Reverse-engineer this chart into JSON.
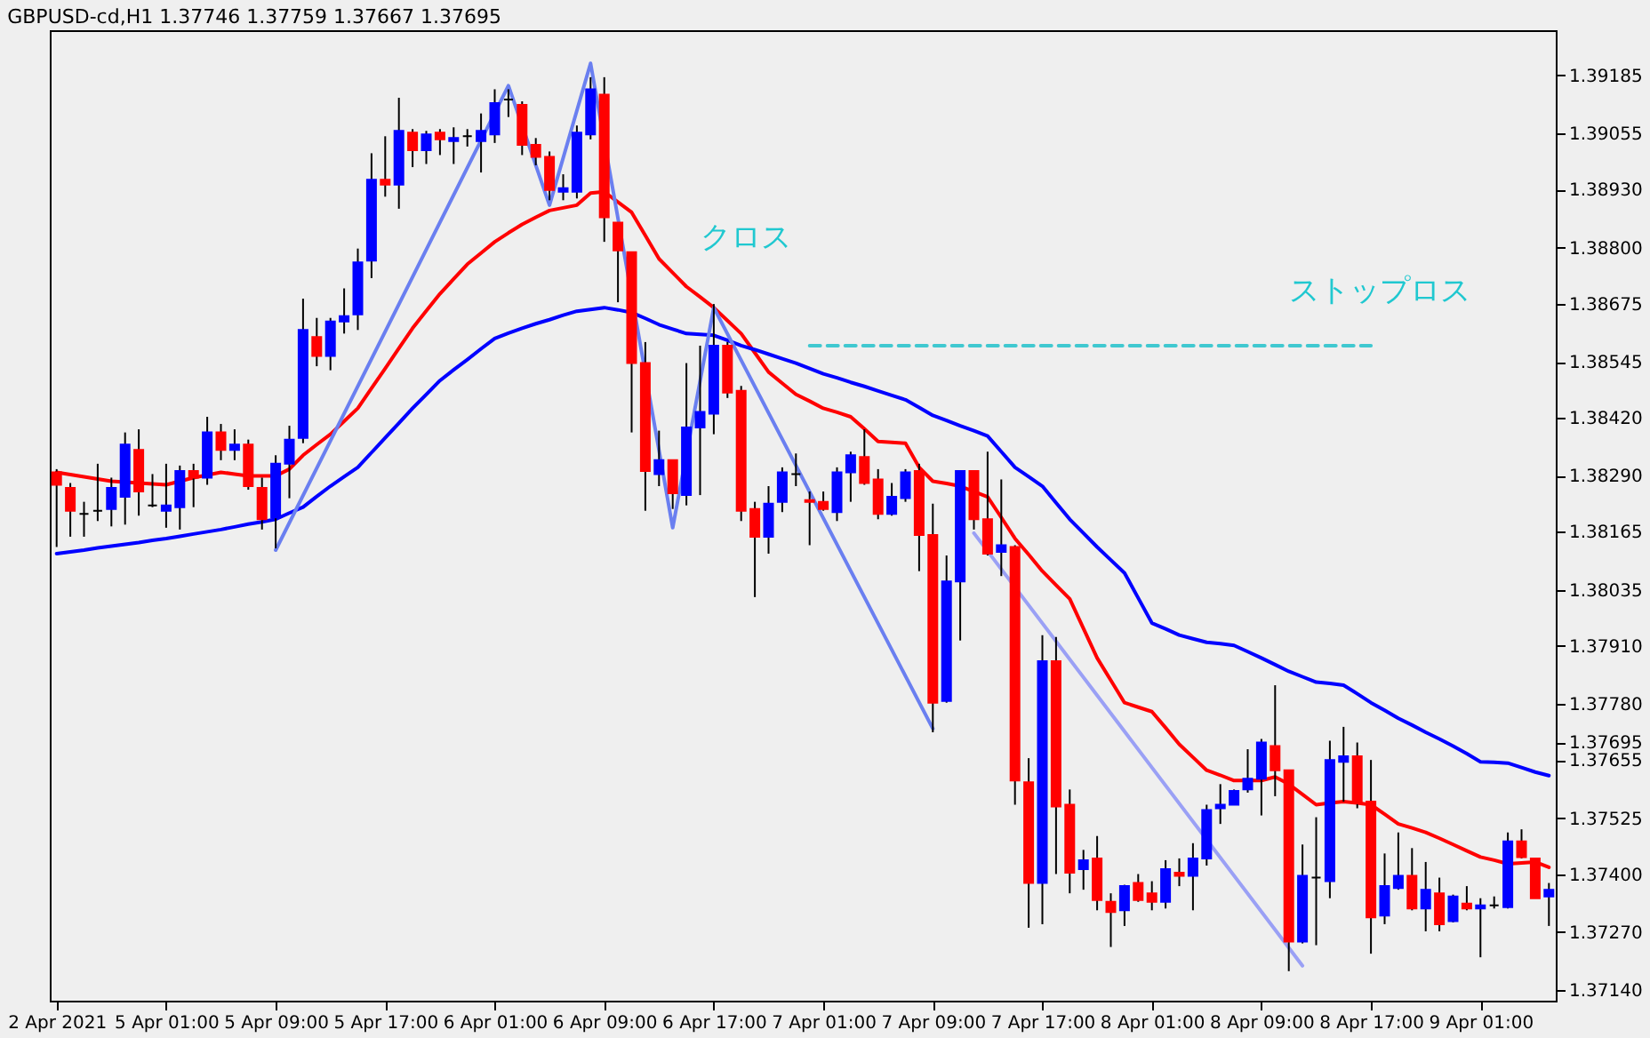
{
  "chart_data": {
    "type": "candlestick",
    "title": "GBPUSD-cd,H1  1.37746 1.37759 1.37667 1.37695",
    "categories": [
      "2 Apr 2021",
      null,
      null,
      null,
      null,
      null,
      null,
      null,
      "5 Apr 01:00",
      null,
      null,
      null,
      null,
      null,
      null,
      null,
      "5 Apr 09:00",
      null,
      null,
      null,
      null,
      null,
      null,
      null,
      "5 Apr 17:00",
      null,
      null,
      null,
      null,
      null,
      null,
      null,
      "6 Apr 01:00",
      null,
      null,
      null,
      null,
      null,
      null,
      null,
      "6 Apr 09:00",
      null,
      null,
      null,
      null,
      null,
      null,
      null,
      "6 Apr 17:00",
      null,
      null,
      null,
      null,
      null,
      null,
      null,
      "7 Apr 01:00",
      null,
      null,
      null,
      null,
      null,
      null,
      null,
      "7 Apr 09:00",
      null,
      null,
      null,
      null,
      null,
      null,
      null,
      "7 Apr 17:00",
      null,
      null,
      null,
      null,
      null,
      null,
      null,
      "8 Apr 01:00",
      null,
      null,
      null,
      null,
      null,
      null,
      null,
      "8 Apr 09:00",
      null,
      null,
      null,
      null,
      null,
      null,
      null,
      "8 Apr 17:00",
      null,
      null,
      null,
      null,
      null,
      null,
      null,
      "9 Apr 01:00",
      null,
      null,
      null,
      null,
      null
    ],
    "ohlc": [
      [
        1.38298,
        1.38305,
        1.38131,
        1.3827
      ],
      [
        1.38263,
        1.38274,
        1.38154,
        1.38212
      ],
      [
        1.38205,
        1.38232,
        1.38154,
        1.38205
      ],
      [
        1.38212,
        1.38317,
        1.38189,
        1.38212
      ],
      [
        1.38216,
        1.38286,
        1.38177,
        1.38263
      ],
      [
        1.38243,
        1.38387,
        1.38181,
        1.3836
      ],
      [
        1.38348,
        1.38394,
        1.38201,
        1.38255
      ],
      [
        1.38224,
        1.38294,
        1.3822,
        1.38224
      ],
      [
        1.38212,
        1.38317,
        1.38174,
        1.38224
      ],
      [
        1.3822,
        1.38313,
        1.3817,
        1.38301
      ],
      [
        1.38301,
        1.38317,
        1.3822,
        1.38286
      ],
      [
        1.38286,
        1.38422,
        1.3827,
        1.38387
      ],
      [
        1.38387,
        1.38406,
        1.38325,
        1.38348
      ],
      [
        1.38348,
        1.38394,
        1.38325,
        1.3836
      ],
      [
        1.3836,
        1.38371,
        1.38259,
        1.38267
      ],
      [
        1.38263,
        1.38286,
        1.3817,
        1.38193
      ],
      [
        1.38197,
        1.38336,
        1.38128,
        1.38317
      ],
      [
        1.38317,
        1.38402,
        1.3824,
        1.38371
      ],
      [
        1.38375,
        1.38686,
        1.38363,
        1.38616
      ],
      [
        1.386,
        1.38643,
        1.38535,
        1.38558
      ],
      [
        1.38558,
        1.38643,
        1.38526,
        1.38635
      ],
      [
        1.38635,
        1.38709,
        1.38608,
        1.38647
      ],
      [
        1.38651,
        1.38798,
        1.38616,
        1.38767
      ],
      [
        1.38771,
        1.39011,
        1.38732,
        1.38952
      ],
      [
        1.38952,
        1.39049,
        1.38914,
        1.38941
      ],
      [
        1.38941,
        1.39135,
        1.38887,
        1.39061
      ],
      [
        1.39057,
        1.39065,
        1.3898,
        1.39018
      ],
      [
        1.39018,
        1.39061,
        1.38987,
        1.39053
      ],
      [
        1.39057,
        1.39065,
        1.39007,
        1.39042
      ],
      [
        1.39038,
        1.39069,
        1.38987,
        1.39045
      ],
      [
        1.39049,
        1.39065,
        1.39026,
        1.39049
      ],
      [
        1.39038,
        1.391,
        1.38968,
        1.39061
      ],
      [
        1.39053,
        1.39154,
        1.39034,
        1.39123
      ],
      [
        1.39131,
        1.39154,
        1.39092,
        1.39131
      ],
      [
        1.39119,
        1.39127,
        1.39007,
        1.3903
      ],
      [
        1.3903,
        1.39045,
        1.38984,
        1.39003
      ],
      [
        1.39003,
        1.39015,
        1.38906,
        1.38929
      ],
      [
        1.38925,
        1.38964,
        1.38906,
        1.38933
      ],
      [
        1.38925,
        1.39073,
        1.3891,
        1.39057
      ],
      [
        1.39053,
        1.39181,
        1.39042,
        1.39154
      ],
      [
        1.39142,
        1.39181,
        1.38813,
        1.38868
      ],
      [
        1.38856,
        1.38856,
        1.38678,
        1.38794
      ],
      [
        1.3879,
        1.3879,
        1.38387,
        1.38542
      ],
      [
        1.38542,
        1.38589,
        1.38212,
        1.38301
      ],
      [
        1.38294,
        1.38391,
        1.38267,
        1.38325
      ],
      [
        1.38325,
        1.38325,
        1.38216,
        1.38251
      ],
      [
        1.38247,
        1.38542,
        1.38224,
        1.38398
      ],
      [
        1.38398,
        1.38581,
        1.38247,
        1.38433
      ],
      [
        1.38429,
        1.38674,
        1.38383,
        1.38581
      ],
      [
        1.38581,
        1.38589,
        1.38464,
        1.38476
      ],
      [
        1.3848,
        1.38491,
        1.38189,
        1.38212
      ],
      [
        1.38216,
        1.38232,
        1.38019,
        1.38154
      ],
      [
        1.38154,
        1.38267,
        1.38116,
        1.38228
      ],
      [
        1.38232,
        1.38309,
        1.38209,
        1.38298
      ],
      [
        1.38294,
        1.3834,
        1.38267,
        1.38294
      ],
      [
        1.38236,
        1.38255,
        1.38135,
        1.38232
      ],
      [
        1.38232,
        1.38255,
        1.38212,
        1.38216
      ],
      [
        1.38209,
        1.38309,
        1.38189,
        1.38298
      ],
      [
        1.38298,
        1.38344,
        1.38232,
        1.38336
      ],
      [
        1.38332,
        1.38394,
        1.3827,
        1.38274
      ],
      [
        1.38282,
        1.38305,
        1.38193,
        1.38205
      ],
      [
        1.38205,
        1.38274,
        1.38201,
        1.38243
      ],
      [
        1.3824,
        1.38305,
        1.38232,
        1.38298
      ],
      [
        1.38301,
        1.38317,
        1.38077,
        1.38158
      ],
      [
        1.38158,
        1.38228,
        1.37717,
        1.37783
      ],
      [
        1.37787,
        1.38112,
        1.37783,
        1.38054
      ],
      [
        1.38054,
        1.38301,
        1.37922,
        1.38301
      ],
      [
        1.38301,
        1.38301,
        1.3817,
        1.38193
      ],
      [
        1.38193,
        1.38344,
        1.38112,
        1.38116
      ],
      [
        1.3812,
        1.38282,
        1.38066,
        1.38135
      ],
      [
        1.38131,
        1.38135,
        1.37555,
        1.37609
      ],
      [
        1.37605,
        1.37659,
        1.3728,
        1.3738
      ],
      [
        1.3738,
        1.37934,
        1.37288,
        1.37876
      ],
      [
        1.37876,
        1.3793,
        1.374,
        1.37551
      ],
      [
        1.37555,
        1.37589,
        1.37357,
        1.37403
      ],
      [
        1.37411,
        1.37454,
        1.37365,
        1.37431
      ],
      [
        1.37435,
        1.37485,
        1.37319,
        1.37342
      ],
      [
        1.37338,
        1.37357,
        1.37237,
        1.37315
      ],
      [
        1.37319,
        1.37376,
        1.37284,
        1.37373
      ],
      [
        1.3738,
        1.374,
        1.37338,
        1.37342
      ],
      [
        1.37357,
        1.37384,
        1.37319,
        1.37338
      ],
      [
        1.37338,
        1.37431,
        1.37323,
        1.37411
      ],
      [
        1.37403,
        1.37435,
        1.37373,
        1.37396
      ],
      [
        1.37396,
        1.37469,
        1.37319,
        1.37435
      ],
      [
        1.37435,
        1.37555,
        1.37419,
        1.37543
      ],
      [
        1.37547,
        1.37601,
        1.37512,
        1.37555
      ],
      [
        1.37555,
        1.37589,
        1.37555,
        1.37586
      ],
      [
        1.37589,
        1.37679,
        1.37582,
        1.37613
      ],
      [
        1.37613,
        1.37702,
        1.37531,
        1.37694
      ],
      [
        1.37686,
        1.37822,
        1.37574,
        1.37632
      ],
      [
        1.37632,
        1.37632,
        1.37183,
        1.37249
      ],
      [
        1.37249,
        1.37466,
        1.37245,
        1.37396
      ],
      [
        1.37392,
        1.37527,
        1.37241,
        1.37392
      ],
      [
        1.37384,
        1.37698,
        1.37346,
        1.37655
      ],
      [
        1.37651,
        1.37729,
        1.37562,
        1.37663
      ],
      [
        1.37663,
        1.37694,
        1.37547,
        1.37558
      ],
      [
        1.37562,
        1.37655,
        1.37222,
        1.37303
      ],
      [
        1.37307,
        1.37446,
        1.37288,
        1.37373
      ],
      [
        1.37369,
        1.37493,
        1.37365,
        1.37396
      ],
      [
        1.37396,
        1.37458,
        1.37319,
        1.37323
      ],
      [
        1.37323,
        1.37427,
        1.37272,
        1.37365
      ],
      [
        1.37357,
        1.37392,
        1.37272,
        1.37288
      ],
      [
        1.37295,
        1.37354,
        1.37292,
        1.3735
      ],
      [
        1.37334,
        1.37373,
        1.37319,
        1.37323
      ],
      [
        1.37323,
        1.37346,
        1.37214,
        1.3733
      ],
      [
        1.3733,
        1.3735,
        1.37323,
        1.3733
      ],
      [
        1.37326,
        1.37493,
        1.37323,
        1.37473
      ],
      [
        1.37473,
        1.375,
        1.37435,
        1.37438
      ],
      [
        1.37435,
        1.37435,
        1.37346,
        1.37346
      ],
      [
        1.3735,
        1.3738,
        1.37284,
        1.37365
      ]
    ],
    "colors": [
      "#ff0000",
      "#ff0000",
      "#000000",
      "#000000",
      "#0000ff",
      "#0000ff",
      "#ff0000",
      "#000000",
      "#0000ff",
      "#0000ff",
      "#ff0000",
      "#0000ff",
      "#ff0000",
      "#0000ff",
      "#ff0000",
      "#ff0000",
      "#0000ff",
      "#0000ff",
      "#0000ff",
      "#ff0000",
      "#0000ff",
      "#0000ff",
      "#0000ff",
      "#0000ff",
      "#ff0000",
      "#0000ff",
      "#ff0000",
      "#0000ff",
      "#ff0000",
      "#0000ff",
      "#000000",
      "#0000ff",
      "#0000ff",
      "#000000",
      "#ff0000",
      "#ff0000",
      "#ff0000",
      "#0000ff",
      "#0000ff",
      "#0000ff",
      "#ff0000",
      "#ff0000",
      "#ff0000",
      "#ff0000",
      "#0000ff",
      "#ff0000",
      "#0000ff",
      "#0000ff",
      "#0000ff",
      "#ff0000",
      "#ff0000",
      "#ff0000",
      "#0000ff",
      "#0000ff",
      "#000000",
      "#ff0000",
      "#ff0000",
      "#0000ff",
      "#0000ff",
      "#ff0000",
      "#ff0000",
      "#0000ff",
      "#0000ff",
      "#ff0000",
      "#ff0000",
      "#0000ff",
      "#0000ff",
      "#ff0000",
      "#ff0000",
      "#0000ff",
      "#ff0000",
      "#ff0000",
      "#0000ff",
      "#ff0000",
      "#ff0000",
      "#0000ff",
      "#ff0000",
      "#ff0000",
      "#0000ff",
      "#ff0000",
      "#ff0000",
      "#0000ff",
      "#ff0000",
      "#0000ff",
      "#0000ff",
      "#0000ff",
      "#0000ff",
      "#0000ff",
      "#0000ff",
      "#ff0000",
      "#ff0000",
      "#0000ff",
      "#000000",
      "#0000ff",
      "#0000ff",
      "#ff0000",
      "#ff0000",
      "#0000ff",
      "#0000ff",
      "#ff0000",
      "#0000ff",
      "#ff0000",
      "#0000ff",
      "#ff0000",
      "#0000ff",
      "#000000",
      "#0000ff",
      "#ff0000",
      "#ff0000",
      "#0000ff"
    ],
    "series": [
      {
        "type": "line",
        "color": "#ff0000",
        "values": [
          1.38298,
          1.38293,
          1.38288,
          1.38283,
          1.38278,
          1.38276,
          1.38274,
          1.38272,
          1.3827,
          1.38278,
          1.38286,
          1.38292,
          1.38298,
          1.38294,
          1.3829,
          1.3829,
          1.3829,
          1.38305,
          1.38336,
          1.3836,
          1.38383,
          1.38412,
          1.38441,
          1.38486,
          1.3853,
          1.38575,
          1.3862,
          1.38659,
          1.38697,
          1.3873,
          1.38763,
          1.38788,
          1.38813,
          1.38833,
          1.38852,
          1.38868,
          1.38883,
          1.38889,
          1.38895,
          1.38922,
          1.38925,
          1.38902,
          1.38879,
          1.38827,
          1.38775,
          1.38744,
          1.38713,
          1.3869,
          1.38666,
          1.38637,
          1.38608,
          1.38565,
          1.38522,
          1.38497,
          1.38472,
          1.38457,
          1.38441,
          1.38432,
          1.38422,
          1.38395,
          1.38367,
          1.38365,
          1.38363,
          1.38309,
          1.38278,
          1.38273,
          1.38267,
          1.38255,
          1.38243,
          1.38197,
          1.3815,
          1.38114,
          1.38077,
          1.38046,
          1.38015,
          1.37949,
          1.37883,
          1.37833,
          1.37783,
          1.37773,
          1.37763,
          1.37727,
          1.3769,
          1.37661,
          1.37632,
          1.37621,
          1.37609,
          1.37609,
          1.37609,
          1.37617,
          1.37601,
          1.37578,
          1.37555,
          1.37559,
          1.37562,
          1.37559,
          1.37555,
          1.37534,
          1.37512,
          1.37503,
          1.37493,
          1.3748,
          1.37466,
          1.37452,
          1.37438,
          1.37431,
          1.37423,
          1.37425,
          1.37427,
          1.37415
        ]
      },
      {
        "type": "line",
        "color": "#0000ff",
        "values": [
          1.38116,
          1.3812,
          1.38124,
          1.38129,
          1.38133,
          1.38137,
          1.38141,
          1.38146,
          1.3815,
          1.38155,
          1.3816,
          1.38165,
          1.3817,
          1.38176,
          1.38182,
          1.38187,
          1.38193,
          1.38207,
          1.3822,
          1.38244,
          1.38267,
          1.38288,
          1.38309,
          1.38342,
          1.38375,
          1.38408,
          1.38441,
          1.38472,
          1.38503,
          1.38527,
          1.3855,
          1.38574,
          1.38597,
          1.38609,
          1.3862,
          1.3863,
          1.38639,
          1.38649,
          1.38658,
          1.38662,
          1.38666,
          1.38661,
          1.38655,
          1.38642,
          1.38628,
          1.38618,
          1.38608,
          1.38606,
          1.38604,
          1.38593,
          1.38581,
          1.38572,
          1.38562,
          1.38552,
          1.38542,
          1.3853,
          1.38518,
          1.38509,
          1.38499,
          1.3849,
          1.3848,
          1.3847,
          1.3846,
          1.38443,
          1.38425,
          1.38414,
          1.38402,
          1.38391,
          1.38379,
          1.38344,
          1.38309,
          1.38288,
          1.38267,
          1.3823,
          1.38193,
          1.38162,
          1.38131,
          1.38102,
          1.38073,
          1.38017,
          1.37961,
          1.37948,
          1.37934,
          1.37926,
          1.37918,
          1.37915,
          1.37911,
          1.37897,
          1.37883,
          1.37868,
          1.37853,
          1.37841,
          1.37829,
          1.37826,
          1.37822,
          1.37803,
          1.37783,
          1.37766,
          1.37748,
          1.37733,
          1.37717,
          1.37702,
          1.37686,
          1.37669,
          1.37651,
          1.3765,
          1.37648,
          1.37638,
          1.37628,
          1.3762
        ]
      },
      {
        "type": "line",
        "color": "#6a7ff0",
        "values": [
          null,
          null,
          null,
          null,
          null,
          null,
          null,
          null,
          null,
          null,
          null,
          null,
          null,
          null,
          null,
          null,
          1.38124,
          null,
          null,
          null,
          null,
          null,
          null,
          null,
          null,
          null,
          null,
          null,
          null,
          null,
          null,
          null,
          null,
          1.39162,
          null,
          null,
          1.38895,
          null,
          null,
          1.39212,
          null,
          null,
          null,
          null,
          null,
          1.38174,
          null,
          null,
          1.38666,
          null,
          null,
          null,
          null,
          null,
          null,
          null,
          null,
          null,
          null,
          null,
          null,
          null,
          null,
          null,
          1.37725,
          null,
          null,
          null,
          null,
          null,
          null,
          null,
          null,
          null,
          null,
          null,
          null,
          null,
          null,
          null,
          null,
          null,
          null,
          null,
          null,
          null,
          null,
          null,
          null,
          null,
          null,
          null,
          null,
          null,
          null,
          null,
          null,
          null,
          null,
          null,
          null,
          null,
          null,
          null,
          null,
          null,
          null,
          null,
          null,
          null
        ]
      },
      {
        "type": "line",
        "color": "#9aa0f5",
        "values": [
          null,
          null,
          null,
          null,
          null,
          null,
          null,
          null,
          null,
          null,
          null,
          null,
          null,
          null,
          null,
          null,
          null,
          null,
          null,
          null,
          null,
          null,
          null,
          null,
          null,
          null,
          null,
          null,
          null,
          null,
          null,
          null,
          null,
          null,
          null,
          null,
          null,
          null,
          null,
          null,
          null,
          null,
          null,
          null,
          null,
          null,
          null,
          null,
          null,
          null,
          null,
          null,
          null,
          null,
          null,
          null,
          null,
          null,
          null,
          null,
          null,
          null,
          null,
          null,
          null,
          null,
          null,
          1.38162,
          null,
          null,
          null,
          null,
          null,
          null,
          null,
          null,
          null,
          null,
          null,
          null,
          null,
          null,
          null,
          null,
          null,
          null,
          null,
          null,
          null,
          null,
          null,
          1.37195,
          null,
          null,
          null,
          null,
          null,
          null,
          null,
          null,
          null,
          null,
          null,
          null,
          null,
          null,
          null,
          null,
          null,
          null
        ]
      },
      {
        "type": "line",
        "color": "#40c8d0",
        "line_style": "dashed",
        "values": [
          null,
          null,
          null,
          null,
          null,
          null,
          null,
          null,
          null,
          null,
          null,
          null,
          null,
          null,
          null,
          null,
          null,
          null,
          null,
          null,
          null,
          null,
          null,
          null,
          null,
          null,
          null,
          null,
          null,
          null,
          null,
          null,
          null,
          null,
          null,
          null,
          null,
          null,
          null,
          null,
          null,
          null,
          null,
          null,
          null,
          null,
          null,
          null,
          null,
          null,
          null,
          null,
          null,
          null,
          null,
          1.38581,
          1.38581,
          1.38581,
          1.38581,
          1.38581,
          1.38581,
          1.38581,
          1.38581,
          1.38581,
          1.38581,
          1.38581,
          1.38581,
          1.38581,
          1.38581,
          1.38581,
          1.38581,
          1.38581,
          1.38581,
          1.38581,
          1.38581,
          1.38581,
          1.38581,
          1.38581,
          1.38581,
          1.38581,
          1.38581,
          1.38581,
          1.38581,
          1.38581,
          1.38581,
          1.38581,
          1.38581,
          1.38581,
          1.38581,
          1.38581,
          1.38581,
          1.38581,
          1.38581,
          1.38581,
          1.38581,
          1.38581,
          1.38581,
          null,
          null,
          null,
          null,
          null,
          null,
          null,
          null,
          null,
          null,
          null,
          null,
          null
        ]
      }
    ],
    "annotations": [
      "クロス",
      "ストップロス"
    ],
    "ylim": [
      1.37117,
      1.39286
    ],
    "yticks": [
      {
        "value": 1.39185,
        "label": "1.39185"
      },
      {
        "value": 1.39055,
        "label": "1.39055"
      },
      {
        "value": 1.3893,
        "label": "1.38930"
      },
      {
        "value": 1.388,
        "label": "1.38800"
      },
      {
        "value": 1.38675,
        "label": "1.38675"
      },
      {
        "value": 1.38545,
        "label": "1.38545"
      },
      {
        "value": 1.3842,
        "label": "1.38420"
      },
      {
        "value": 1.3829,
        "label": "1.38290"
      },
      {
        "value": 1.38165,
        "label": "1.38165"
      },
      {
        "value": 1.38035,
        "label": "1.38035"
      },
      {
        "value": 1.3791,
        "label": "1.37910"
      },
      {
        "value": 1.3778,
        "label": "1.37780"
      },
      {
        "value": 1.37695,
        "label": "1.37695"
      },
      {
        "value": 1.37655,
        "label": "1.37655"
      },
      {
        "value": 1.37525,
        "label": "1.37525"
      },
      {
        "value": 1.374,
        "label": "1.37400"
      },
      {
        "value": 1.3727,
        "label": "1.37270"
      },
      {
        "value": 1.3714,
        "label": "1.37140"
      }
    ],
    "grid": false
  }
}
